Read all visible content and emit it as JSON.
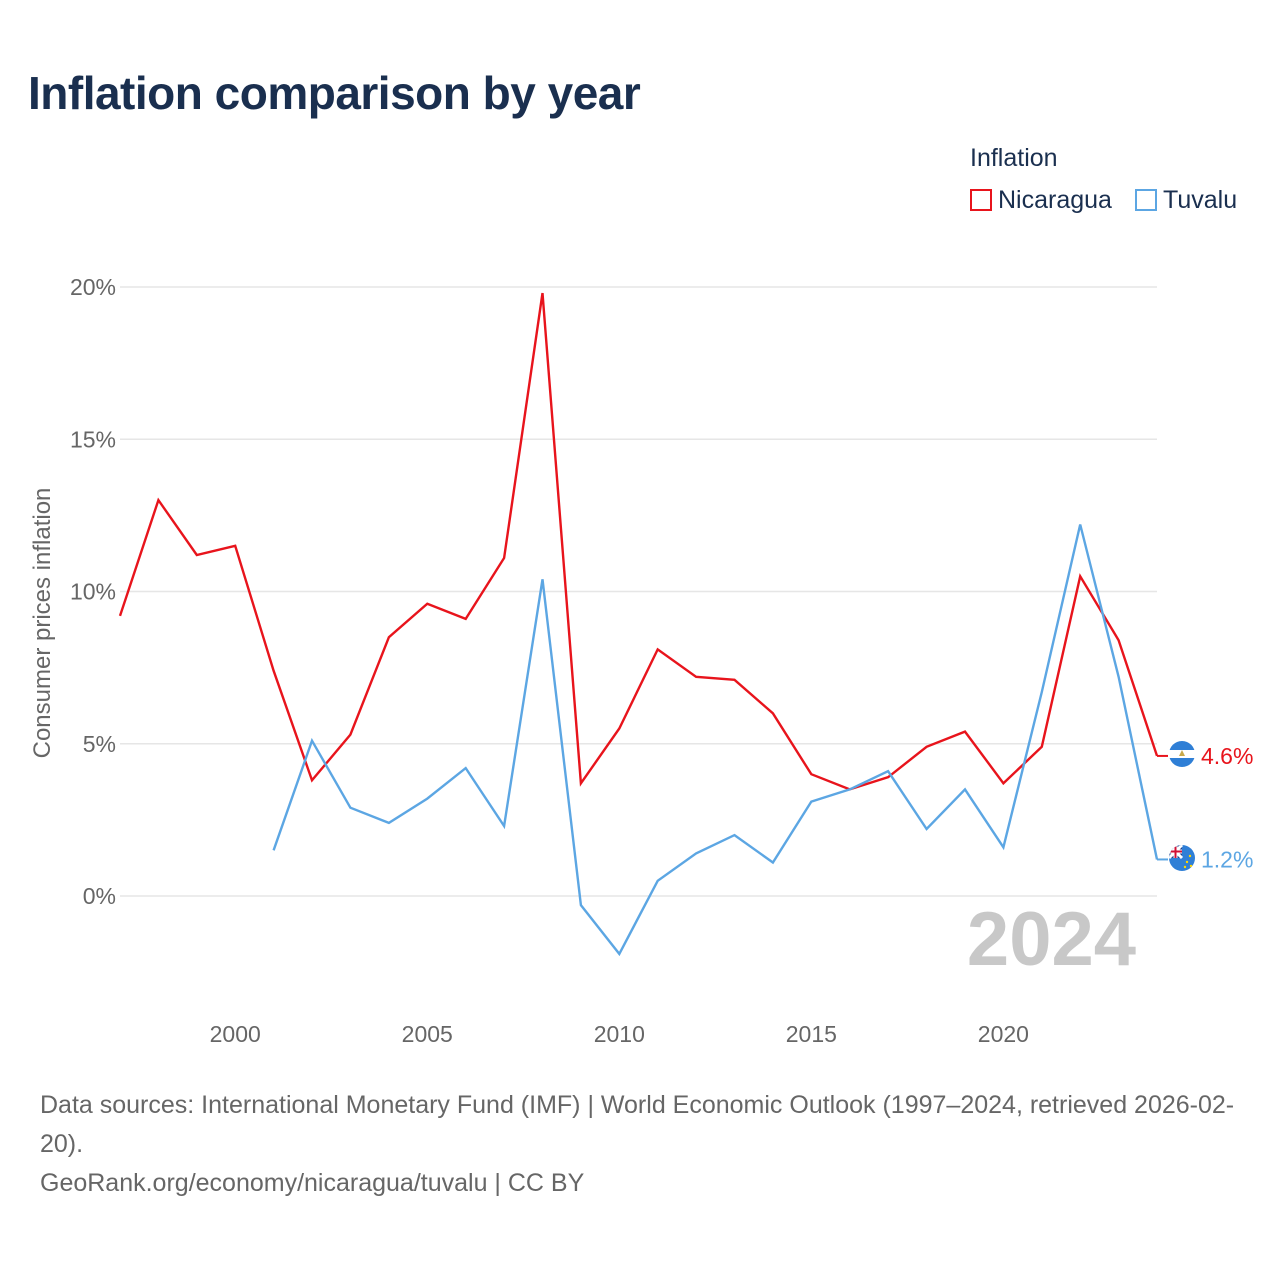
{
  "title": "Inflation comparison by year",
  "legend": {
    "title": "Inflation",
    "items": [
      {
        "label": "Nicaragua",
        "color": "#e8141c"
      },
      {
        "label": "Tuvalu",
        "color": "#5ca6e3"
      }
    ]
  },
  "chart_data": {
    "type": "line",
    "title": "Inflation comparison by year",
    "xlabel": "",
    "ylabel": "Consumer prices inflation",
    "xlim": [
      1997,
      2024
    ],
    "ylim": [
      -3.5,
      20.5
    ],
    "x_ticks": [
      2000,
      2005,
      2010,
      2015,
      2020
    ],
    "x_tick_labels": [
      "2000",
      "2005",
      "2010",
      "2015",
      "2020"
    ],
    "y_ticks": [
      0,
      5,
      10,
      15,
      20
    ],
    "y_tick_labels": [
      "0%",
      "5%",
      "10%",
      "15%",
      "20%"
    ],
    "grid": true,
    "legend_position": "top-right",
    "watermark_year": "2024",
    "x": [
      1997,
      1998,
      1999,
      2000,
      2001,
      2002,
      2003,
      2004,
      2005,
      2006,
      2007,
      2008,
      2009,
      2010,
      2011,
      2012,
      2013,
      2014,
      2015,
      2016,
      2017,
      2018,
      2019,
      2020,
      2021,
      2022,
      2023,
      2024
    ],
    "series": [
      {
        "name": "Nicaragua",
        "color": "#e8141c",
        "end_label": "4.6%",
        "values": [
          9.2,
          13.0,
          11.2,
          11.5,
          7.4,
          3.8,
          5.3,
          8.5,
          9.6,
          9.1,
          11.1,
          19.8,
          3.7,
          5.5,
          8.1,
          7.2,
          7.1,
          6.0,
          4.0,
          3.5,
          3.9,
          4.9,
          5.4,
          3.7,
          4.9,
          10.5,
          8.4,
          4.6
        ]
      },
      {
        "name": "Tuvalu",
        "color": "#5ca6e3",
        "end_label": "1.2%",
        "values": [
          null,
          null,
          null,
          null,
          1.5,
          5.1,
          2.9,
          2.4,
          3.2,
          4.2,
          2.3,
          10.4,
          -0.3,
          -1.9,
          0.5,
          1.4,
          2.0,
          1.1,
          3.1,
          3.5,
          4.1,
          2.2,
          3.5,
          1.6,
          6.7,
          12.2,
          7.2,
          1.2
        ]
      }
    ]
  },
  "footer": {
    "sources": "Data sources: International Monetary Fund (IMF) | World Economic Outlook (1997–2024, retrieved 2026-02-20).",
    "credit": "GeoRank.org/economy/nicaragua/tuvalu | CC BY"
  }
}
